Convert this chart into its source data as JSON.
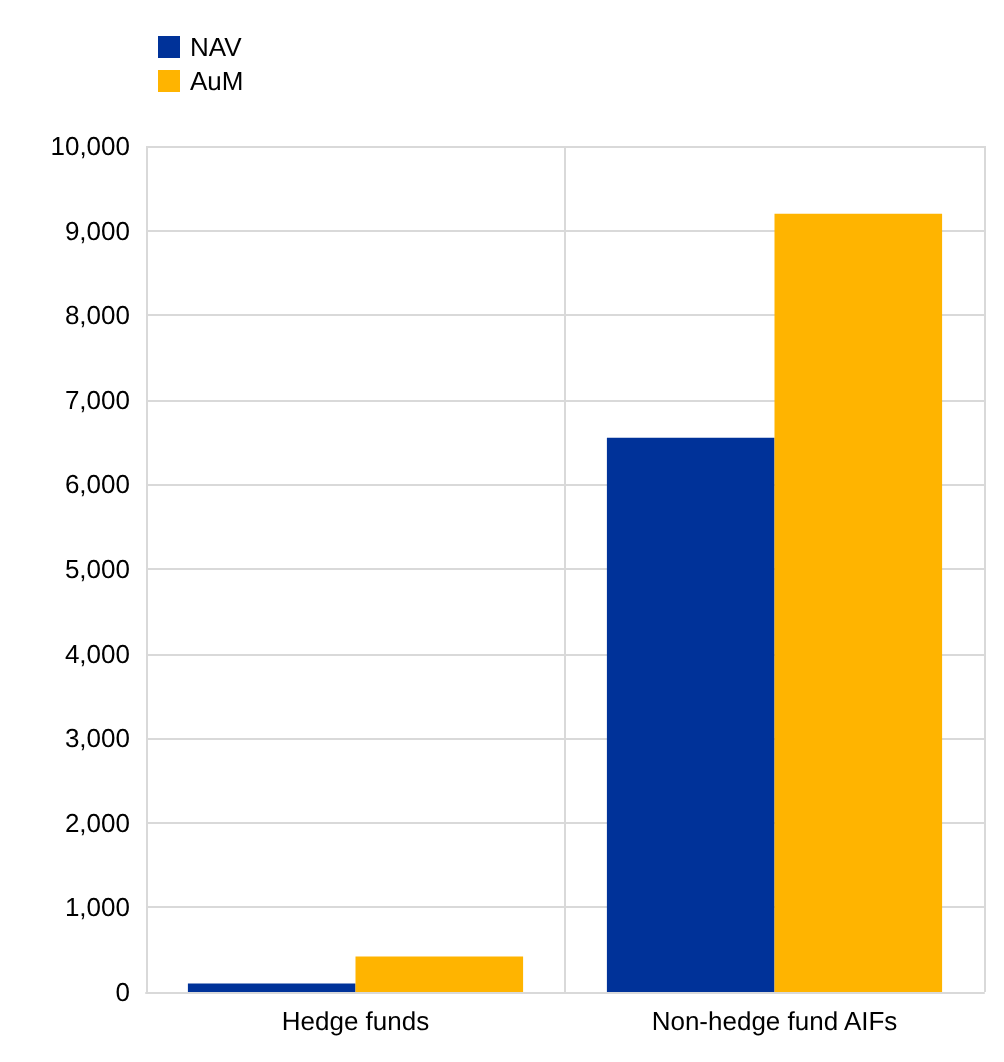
{
  "chart_data": {
    "type": "bar",
    "categories": [
      "Hedge funds",
      "Non-hedge fund AIFs"
    ],
    "series": [
      {
        "name": "NAV",
        "color": "#003299",
        "values": [
          100,
          6550
        ]
      },
      {
        "name": "AuM",
        "color": "#ffb400",
        "values": [
          420,
          9200
        ]
      }
    ],
    "ylim": [
      0,
      10000
    ],
    "yticks": [
      0,
      {
        "value": 1000,
        "label": "1,000"
      },
      {
        "value": 2000,
        "label": "2,000"
      },
      {
        "value": 3000,
        "label": "3,000"
      },
      {
        "value": 4000,
        "label": "4,000"
      },
      {
        "value": 5000,
        "label": "5,000"
      },
      {
        "value": 6000,
        "label": "6,000"
      },
      {
        "value": 7000,
        "label": "7,000"
      },
      {
        "value": 8000,
        "label": "8,000"
      },
      {
        "value": 9000,
        "label": "9,000"
      },
      {
        "value": 10000,
        "label": "10,000"
      }
    ],
    "grid": true,
    "legend": "top left"
  }
}
